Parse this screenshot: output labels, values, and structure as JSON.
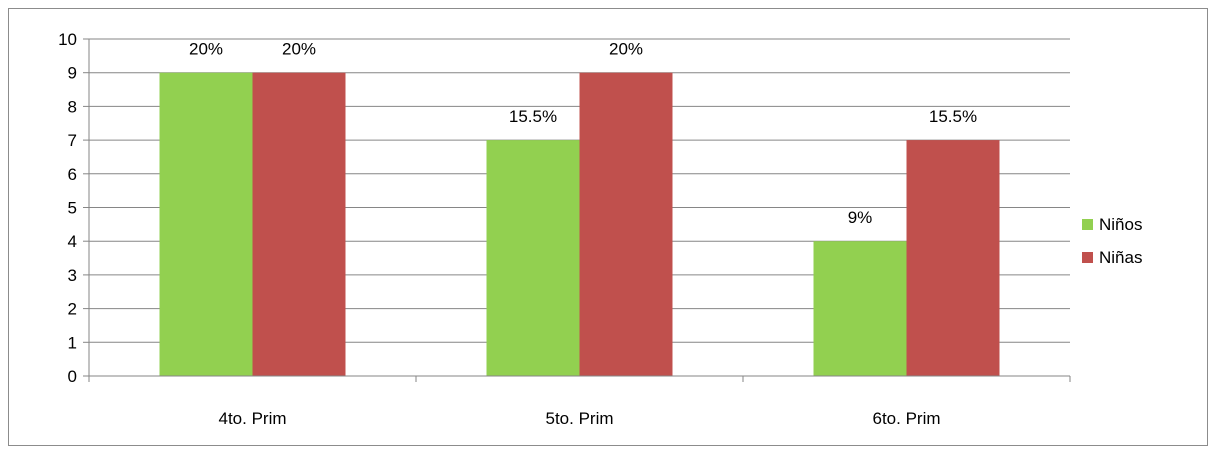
{
  "chart_data": {
    "type": "bar",
    "title": "",
    "xlabel": "",
    "ylabel": "",
    "categories": [
      "4to. Prim",
      "5to. Prim",
      "6to. Prim"
    ],
    "series": [
      {
        "name": "Niños",
        "color": "#92d050",
        "values": [
          9,
          7,
          4
        ],
        "labels": [
          "20%",
          "15.5%",
          "9%"
        ]
      },
      {
        "name": "Niñas",
        "color": "#c0504d",
        "values": [
          9,
          9,
          7
        ],
        "labels": [
          "20%",
          "20%",
          "15.5%"
        ]
      }
    ],
    "ylim": [
      0,
      10
    ],
    "yticks": [
      "0",
      "1",
      "2",
      "3",
      "4",
      "5",
      "6",
      "7",
      "8",
      "9",
      "10"
    ],
    "grid": true,
    "legend_position": "right"
  }
}
